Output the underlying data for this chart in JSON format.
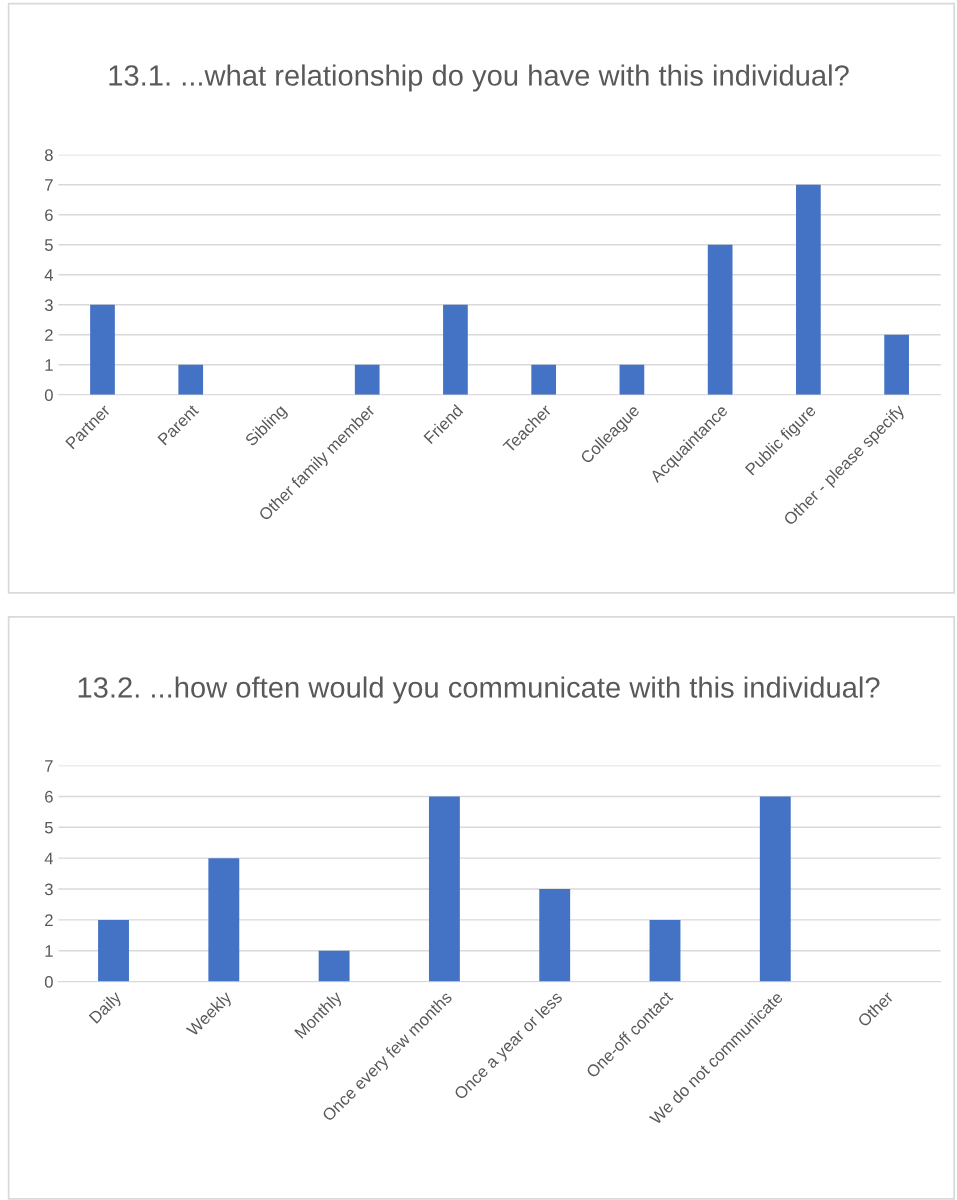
{
  "chart_data": [
    {
      "type": "bar",
      "title": "13.1. ...what relationship do you have with this individual?",
      "categories": [
        "Partner",
        "Parent",
        "Sibling",
        "Other family member",
        "Friend",
        "Teacher",
        "Colleague",
        "Acquaintance",
        "Public figure",
        "Other - please specify"
      ],
      "values": [
        3,
        1,
        0,
        1,
        3,
        1,
        1,
        5,
        7,
        2
      ],
      "color": "#4472c4",
      "ylim": [
        0,
        8
      ],
      "yticks": [
        0,
        1,
        2,
        3,
        4,
        5,
        6,
        7,
        8
      ],
      "grid": "y"
    },
    {
      "type": "bar",
      "title": "13.2. ...how often would you communicate with this individual?",
      "categories": [
        "Daily",
        "Weekly",
        "Monthly",
        "Once every few months",
        "Once a year or less",
        "One-off contact",
        "We do not communicate",
        "Other"
      ],
      "values": [
        2,
        4,
        1,
        6,
        3,
        2,
        6,
        0
      ],
      "color": "#4472c4",
      "ylim": [
        0,
        7
      ],
      "yticks": [
        0,
        1,
        2,
        3,
        4,
        5,
        6,
        7
      ],
      "grid": "y"
    }
  ]
}
